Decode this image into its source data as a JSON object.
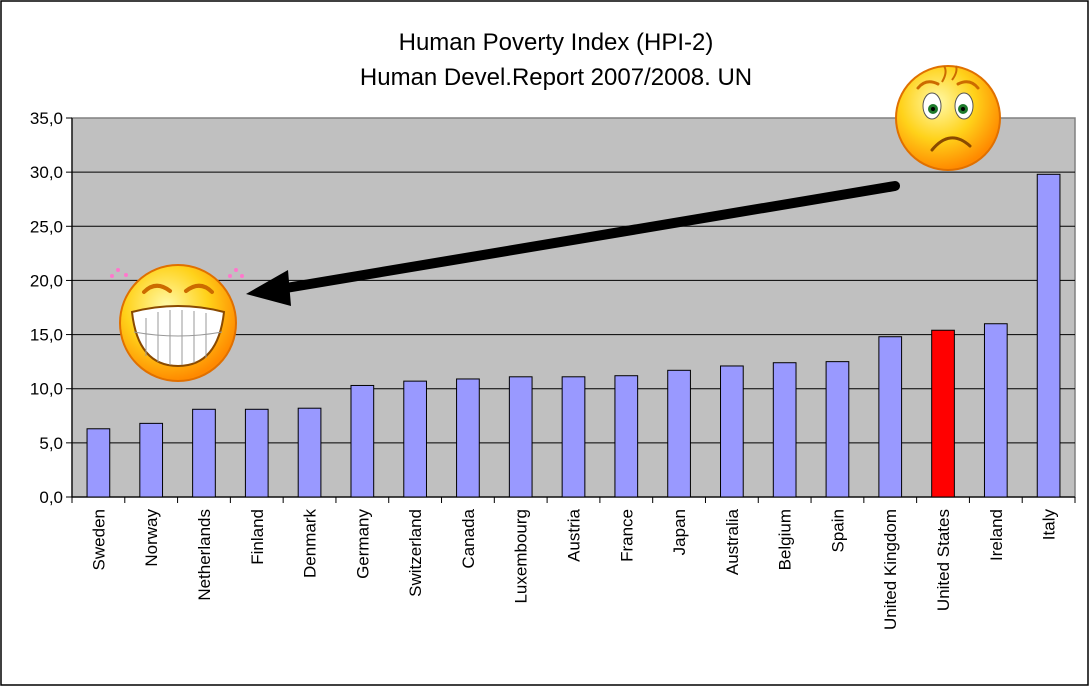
{
  "chart_data": {
    "type": "bar",
    "title": "Human Poverty Index (HPI-2)",
    "subtitle": "Human Devel.Report 2007/2008. UN",
    "categories": [
      "Sweden",
      "Norway",
      "Netherlands",
      "Finland",
      "Denmark",
      "Germany",
      "Switzerland",
      "Canada",
      "Luxembourg",
      "Austria",
      "France",
      "Japan",
      "Australia",
      "Belgium",
      "Spain",
      "United Kingdom",
      "United States",
      "Ireland",
      "Italy"
    ],
    "values": [
      6.3,
      6.8,
      8.1,
      8.1,
      8.2,
      10.3,
      10.7,
      10.9,
      11.1,
      11.1,
      11.2,
      11.7,
      12.1,
      12.4,
      12.5,
      14.8,
      15.4,
      16.0,
      29.8
    ],
    "y_ticks": [
      "0,0",
      "5,0",
      "10,0",
      "15,0",
      "20,0",
      "25,0",
      "30,0",
      "35,0"
    ],
    "ylim": [
      0,
      35
    ],
    "grid": true,
    "legend": "none",
    "highlight_category": "United States",
    "colors": {
      "bar": "#9999ff",
      "highlight": "#ff0000",
      "plot_background": "#c0c0c0"
    },
    "annotations": {
      "happy_face": "grinning-smiley-icon",
      "sad_face": "frowning-smiley-icon",
      "arrow": "black-arrow pointing from sad face toward happy face"
    }
  }
}
